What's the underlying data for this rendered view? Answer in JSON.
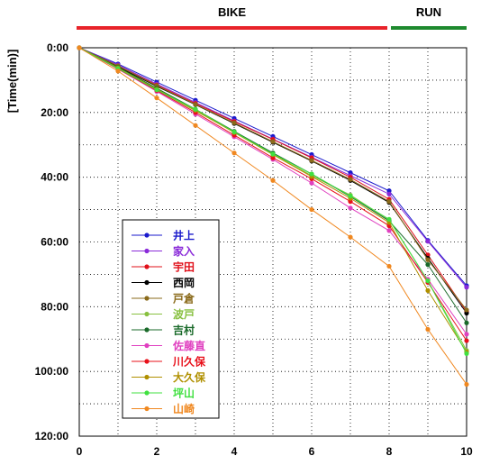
{
  "chart_data": {
    "type": "line",
    "ylabel": "[Time(min)]",
    "xlabel": "",
    "title": "",
    "x": [
      0,
      1,
      2,
      3,
      4,
      5,
      6,
      7,
      8,
      9,
      10
    ],
    "xlim": [
      0,
      10
    ],
    "ylim": [
      0,
      120
    ],
    "y_inverted": true,
    "x_ticks": [
      "0",
      "2",
      "4",
      "6",
      "8",
      "10"
    ],
    "x_tick_values": [
      0,
      2,
      4,
      6,
      8,
      10
    ],
    "y_ticks": [
      "0:00",
      "20:00",
      "40:00",
      "60:00",
      "80:00",
      "100:00",
      "120:00"
    ],
    "y_tick_values": [
      0,
      20,
      40,
      60,
      80,
      100,
      120
    ],
    "grid": true,
    "legend_position": "lower-left",
    "segments": [
      {
        "label": "BIKE",
        "from": 0,
        "to": 8,
        "color": "#e8232a"
      },
      {
        "label": "RUN",
        "from": 8,
        "to": 10,
        "color": "#1e8a2e"
      }
    ],
    "series": [
      {
        "name": "井上",
        "color": "#1a1acc",
        "values": [
          0,
          5.0,
          10.6,
          16.2,
          21.8,
          27.4,
          33.0,
          38.6,
          44.2,
          59.5,
          73.5
        ]
      },
      {
        "name": "家入",
        "color": "#8a2bd9",
        "values": [
          0,
          5.3,
          11.2,
          16.9,
          22.6,
          28.2,
          33.8,
          39.5,
          45.2,
          59.8,
          74.0
        ]
      },
      {
        "name": "宇田",
        "color": "#e0101a",
        "values": [
          0,
          5.6,
          11.5,
          17.2,
          22.8,
          28.3,
          34.0,
          40.0,
          46.8,
          64.0,
          81.5
        ]
      },
      {
        "name": "西岡",
        "color": "#000000",
        "values": [
          0,
          5.9,
          11.9,
          17.6,
          23.4,
          29.2,
          35.0,
          41.0,
          47.8,
          65.0,
          82.0
        ]
      },
      {
        "name": "戸倉",
        "color": "#8a6a1a",
        "values": [
          0,
          5.6,
          11.7,
          17.5,
          23.2,
          29.0,
          34.8,
          40.7,
          47.5,
          65.5,
          81.0
        ]
      },
      {
        "name": "波戸",
        "color": "#88c040",
        "values": [
          0,
          6.3,
          13.0,
          19.5,
          26.0,
          33.0,
          39.5,
          45.5,
          53.2,
          72.0,
          93.5
        ]
      },
      {
        "name": "吉村",
        "color": "#1a6a2a",
        "values": [
          0,
          6.0,
          12.5,
          19.0,
          25.8,
          32.5,
          39.0,
          46.0,
          53.5,
          67.0,
          85.0
        ]
      },
      {
        "name": "佐藤直",
        "color": "#e040c0",
        "values": [
          0,
          6.6,
          13.5,
          20.5,
          27.5,
          34.5,
          41.8,
          49.5,
          56.5,
          71.5,
          88.5
        ]
      },
      {
        "name": "川久保",
        "color": "#e8101a",
        "values": [
          0,
          6.5,
          13.2,
          20.0,
          27.0,
          34.0,
          40.5,
          47.5,
          55.0,
          72.5,
          90.5
        ]
      },
      {
        "name": "大久保",
        "color": "#b09000",
        "values": [
          0,
          6.2,
          12.8,
          19.3,
          26.2,
          33.0,
          39.8,
          46.5,
          54.0,
          75.0,
          94.0
        ]
      },
      {
        "name": "坪山",
        "color": "#40e040",
        "values": [
          0,
          6.4,
          13.0,
          19.0,
          26.0,
          32.8,
          39.0,
          45.8,
          53.0,
          72.0,
          94.5
        ]
      },
      {
        "name": "山崎",
        "color": "#f08820",
        "values": [
          0,
          7.2,
          15.5,
          24.0,
          32.5,
          41.0,
          50.0,
          58.5,
          67.5,
          87.0,
          104.0
        ]
      }
    ]
  }
}
